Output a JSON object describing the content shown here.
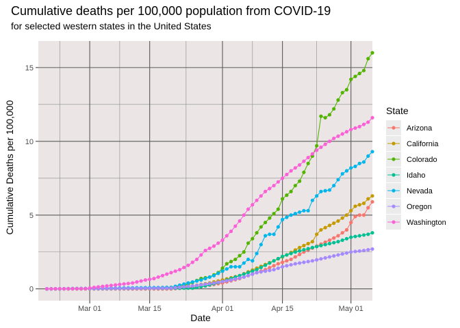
{
  "chart_data": {
    "type": "line",
    "title": "Cumulative deaths per 100,000 population from COVID-19",
    "subtitle": "for selected western states in the United States",
    "xlabel": "Date",
    "ylabel": "Cumulative Deaths per 100,000",
    "x_ticks": [
      {
        "date": "2020-03-01",
        "label": "Mar 01"
      },
      {
        "date": "2020-03-15",
        "label": "Mar 15"
      },
      {
        "date": "2020-04-01",
        "label": "Apr 01"
      },
      {
        "date": "2020-04-15",
        "label": "Apr 15"
      },
      {
        "date": "2020-05-01",
        "label": "May 01"
      }
    ],
    "y_ticks": [
      0,
      5,
      10,
      15
    ],
    "xlim": [
      "2020-02-18",
      "2020-05-06"
    ],
    "ylim": [
      -0.8,
      16.8
    ],
    "legend": {
      "title": "State",
      "position": "right"
    },
    "background": "#EBE5E5",
    "grid": true,
    "series": [
      {
        "name": "Arizona",
        "color": "#F8766D",
        "points": [
          [
            "2020-02-20",
            0
          ],
          [
            "2020-03-20",
            0
          ],
          [
            "2020-03-25",
            0.1
          ],
          [
            "2020-03-28",
            0.2
          ],
          [
            "2020-04-01",
            0.4
          ],
          [
            "2020-04-05",
            0.7
          ],
          [
            "2020-04-08",
            1.0
          ],
          [
            "2020-04-11",
            1.3
          ],
          [
            "2020-04-14",
            1.7
          ],
          [
            "2020-04-17",
            2.0
          ],
          [
            "2020-04-20",
            2.5
          ],
          [
            "2020-04-23",
            2.9
          ],
          [
            "2020-04-26",
            3.3
          ],
          [
            "2020-04-28",
            3.6
          ],
          [
            "2020-04-30",
            4.0
          ],
          [
            "2020-05-01",
            4.5
          ],
          [
            "2020-05-02",
            4.9
          ],
          [
            "2020-05-03",
            5.0
          ],
          [
            "2020-05-04",
            5.0
          ],
          [
            "2020-05-05",
            5.5
          ],
          [
            "2020-05-06",
            5.9
          ]
        ]
      },
      {
        "name": "California",
        "color": "#C49A00",
        "points": [
          [
            "2020-02-20",
            0
          ],
          [
            "2020-03-15",
            0.05
          ],
          [
            "2020-03-20",
            0.1
          ],
          [
            "2020-03-25",
            0.2
          ],
          [
            "2020-03-29",
            0.4
          ],
          [
            "2020-04-01",
            0.6
          ],
          [
            "2020-04-05",
            0.9
          ],
          [
            "2020-04-09",
            1.4
          ],
          [
            "2020-04-13",
            1.9
          ],
          [
            "2020-04-16",
            2.3
          ],
          [
            "2020-04-19",
            2.8
          ],
          [
            "2020-04-22",
            3.2
          ],
          [
            "2020-04-23",
            3.7
          ],
          [
            "2020-04-24",
            4.0
          ],
          [
            "2020-04-26",
            4.3
          ],
          [
            "2020-04-28",
            4.6
          ],
          [
            "2020-04-30",
            5.0
          ],
          [
            "2020-05-01",
            5.3
          ],
          [
            "2020-05-02",
            5.6
          ],
          [
            "2020-05-04",
            5.8
          ],
          [
            "2020-05-05",
            6.1
          ],
          [
            "2020-05-06",
            6.3
          ]
        ]
      },
      {
        "name": "Colorado",
        "color": "#53B400",
        "points": [
          [
            "2020-02-20",
            0
          ],
          [
            "2020-03-15",
            0.05
          ],
          [
            "2020-03-20",
            0.1
          ],
          [
            "2020-03-24",
            0.3
          ],
          [
            "2020-03-27",
            0.7
          ],
          [
            "2020-03-29",
            0.8
          ],
          [
            "2020-03-31",
            1.1
          ],
          [
            "2020-04-01",
            1.4
          ],
          [
            "2020-04-02",
            1.7
          ],
          [
            "2020-04-04",
            2.0
          ],
          [
            "2020-04-06",
            2.5
          ],
          [
            "2020-04-07",
            3.1
          ],
          [
            "2020-04-08",
            3.4
          ],
          [
            "2020-04-10",
            4.2
          ],
          [
            "2020-04-12",
            4.8
          ],
          [
            "2020-04-14",
            5.4
          ],
          [
            "2020-04-15",
            6.1
          ],
          [
            "2020-04-17",
            6.6
          ],
          [
            "2020-04-18",
            7.0
          ],
          [
            "2020-04-19",
            7.3
          ],
          [
            "2020-04-20",
            7.9
          ],
          [
            "2020-04-21",
            8.5
          ],
          [
            "2020-04-22",
            9.0
          ],
          [
            "2020-04-23",
            9.7
          ],
          [
            "2020-04-24",
            11.7
          ],
          [
            "2020-04-25",
            11.6
          ],
          [
            "2020-04-26",
            11.8
          ],
          [
            "2020-04-27",
            12.2
          ],
          [
            "2020-04-28",
            12.8
          ],
          [
            "2020-04-29",
            13.3
          ],
          [
            "2020-04-30",
            13.5
          ],
          [
            "2020-05-01",
            14.2
          ],
          [
            "2020-05-02",
            14.4
          ],
          [
            "2020-05-03",
            14.6
          ],
          [
            "2020-05-04",
            14.8
          ],
          [
            "2020-05-05",
            15.6
          ],
          [
            "2020-05-06",
            16.0
          ]
        ]
      },
      {
        "name": "Idaho",
        "color": "#00C094",
        "points": [
          [
            "2020-02-20",
            0
          ],
          [
            "2020-03-25",
            0.05
          ],
          [
            "2020-03-28",
            0.2
          ],
          [
            "2020-04-01",
            0.5
          ],
          [
            "2020-04-05",
            0.9
          ],
          [
            "2020-04-09",
            1.3
          ],
          [
            "2020-04-13",
            1.9
          ],
          [
            "2020-04-15",
            2.2
          ],
          [
            "2020-04-18",
            2.5
          ],
          [
            "2020-04-22",
            2.8
          ],
          [
            "2020-04-25",
            3.0
          ],
          [
            "2020-04-28",
            3.2
          ],
          [
            "2020-05-01",
            3.5
          ],
          [
            "2020-05-03",
            3.6
          ],
          [
            "2020-05-05",
            3.7
          ],
          [
            "2020-05-06",
            3.8
          ]
        ]
      },
      {
        "name": "Nevada",
        "color": "#00B6EB",
        "points": [
          [
            "2020-02-20",
            0
          ],
          [
            "2020-03-20",
            0.1
          ],
          [
            "2020-03-24",
            0.4
          ],
          [
            "2020-03-27",
            0.6
          ],
          [
            "2020-03-30",
            0.9
          ],
          [
            "2020-04-01",
            1.2
          ],
          [
            "2020-04-03",
            1.5
          ],
          [
            "2020-04-05",
            1.5
          ],
          [
            "2020-04-07",
            2.0
          ],
          [
            "2020-04-08",
            1.9
          ],
          [
            "2020-04-09",
            2.4
          ],
          [
            "2020-04-10",
            3.0
          ],
          [
            "2020-04-11",
            3.6
          ],
          [
            "2020-04-12",
            3.7
          ],
          [
            "2020-04-13",
            3.7
          ],
          [
            "2020-04-14",
            4.2
          ],
          [
            "2020-04-15",
            4.7
          ],
          [
            "2020-04-17",
            5.0
          ],
          [
            "2020-04-19",
            5.2
          ],
          [
            "2020-04-20",
            5.3
          ],
          [
            "2020-04-21",
            5.3
          ],
          [
            "2020-04-22",
            6.0
          ],
          [
            "2020-04-23",
            6.3
          ],
          [
            "2020-04-24",
            6.6
          ],
          [
            "2020-04-26",
            6.7
          ],
          [
            "2020-04-27",
            7.0
          ],
          [
            "2020-04-28",
            7.4
          ],
          [
            "2020-04-29",
            7.8
          ],
          [
            "2020-05-01",
            8.2
          ],
          [
            "2020-05-02",
            8.3
          ],
          [
            "2020-05-03",
            8.5
          ],
          [
            "2020-05-04",
            8.6
          ],
          [
            "2020-05-05",
            9.0
          ],
          [
            "2020-05-06",
            9.3
          ]
        ]
      },
      {
        "name": "Oregon",
        "color": "#A58AFF",
        "points": [
          [
            "2020-02-20",
            0
          ],
          [
            "2020-03-20",
            0.05
          ],
          [
            "2020-03-25",
            0.2
          ],
          [
            "2020-03-30",
            0.4
          ],
          [
            "2020-04-03",
            0.6
          ],
          [
            "2020-04-06",
            0.8
          ],
          [
            "2020-04-09",
            1.1
          ],
          [
            "2020-04-13",
            1.3
          ],
          [
            "2020-04-15",
            1.5
          ],
          [
            "2020-04-18",
            1.7
          ],
          [
            "2020-04-22",
            1.9
          ],
          [
            "2020-04-25",
            2.1
          ],
          [
            "2020-04-28",
            2.3
          ],
          [
            "2020-05-01",
            2.5
          ],
          [
            "2020-05-04",
            2.6
          ],
          [
            "2020-05-06",
            2.7
          ]
        ]
      },
      {
        "name": "Washington",
        "color": "#FB61D7",
        "points": [
          [
            "2020-02-20",
            0
          ],
          [
            "2020-02-29",
            0.02
          ],
          [
            "2020-03-02",
            0.1
          ],
          [
            "2020-03-05",
            0.2
          ],
          [
            "2020-03-08",
            0.3
          ],
          [
            "2020-03-11",
            0.4
          ],
          [
            "2020-03-14",
            0.6
          ],
          [
            "2020-03-16",
            0.7
          ],
          [
            "2020-03-18",
            0.9
          ],
          [
            "2020-03-20",
            1.1
          ],
          [
            "2020-03-22",
            1.3
          ],
          [
            "2020-03-24",
            1.6
          ],
          [
            "2020-03-26",
            2.0
          ],
          [
            "2020-03-28",
            2.6
          ],
          [
            "2020-03-30",
            2.9
          ],
          [
            "2020-04-01",
            3.3
          ],
          [
            "2020-04-03",
            3.9
          ],
          [
            "2020-04-05",
            4.6
          ],
          [
            "2020-04-07",
            5.4
          ],
          [
            "2020-04-09",
            6.0
          ],
          [
            "2020-04-11",
            6.6
          ],
          [
            "2020-04-13",
            7.0
          ],
          [
            "2020-04-15",
            7.5
          ],
          [
            "2020-04-17",
            8.0
          ],
          [
            "2020-04-19",
            8.4
          ],
          [
            "2020-04-21",
            8.9
          ],
          [
            "2020-04-23",
            9.4
          ],
          [
            "2020-04-25",
            9.8
          ],
          [
            "2020-04-27",
            10.2
          ],
          [
            "2020-04-29",
            10.5
          ],
          [
            "2020-05-01",
            10.8
          ],
          [
            "2020-05-03",
            11.0
          ],
          [
            "2020-05-05",
            11.3
          ],
          [
            "2020-05-06",
            11.6
          ]
        ]
      }
    ]
  }
}
